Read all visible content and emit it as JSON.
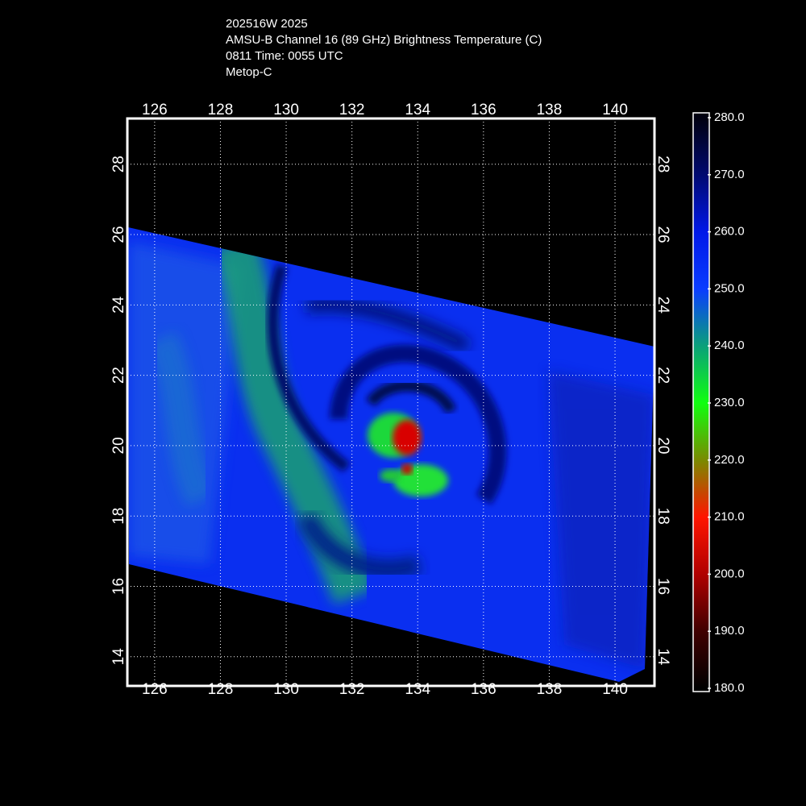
{
  "header": {
    "lines": [
      "202516W 2025",
      "AMSU-B Channel 16 (89 GHz) Brightness Temperature (C)",
      "0811 Time: 0055 UTC",
      "Metop-C"
    ]
  },
  "map": {
    "lon_range": [
      125.17,
      141.2
    ],
    "lat_range": [
      13.17,
      29.3
    ],
    "lon_ticks": [
      126,
      128,
      130,
      132,
      134,
      136,
      138,
      140
    ],
    "lat_ticks": [
      14,
      16,
      18,
      20,
      22,
      24,
      26,
      28
    ],
    "grid": true
  },
  "colorbar": {
    "range": [
      180,
      280
    ],
    "ticks": [
      {
        "value": 280,
        "label": "280.0"
      },
      {
        "value": 270,
        "label": "270.0"
      },
      {
        "value": 260,
        "label": "260.0"
      },
      {
        "value": 250,
        "label": "250.0"
      },
      {
        "value": 240,
        "label": "240.0"
      },
      {
        "value": 230,
        "label": "230.0"
      },
      {
        "value": 220,
        "label": "220.0"
      },
      {
        "value": 210,
        "label": "210.0"
      },
      {
        "value": 200,
        "label": "200.0"
      },
      {
        "value": 190,
        "label": "190.0"
      },
      {
        "value": 180,
        "label": "180.0"
      }
    ],
    "colors": [
      "#000010",
      "#000a70",
      "#0018e8",
      "#0a3cff",
      "#0aa07a",
      "#10ff10",
      "#7a8a00",
      "#ff1500",
      "#b00000",
      "#400000",
      "#000000"
    ]
  }
}
